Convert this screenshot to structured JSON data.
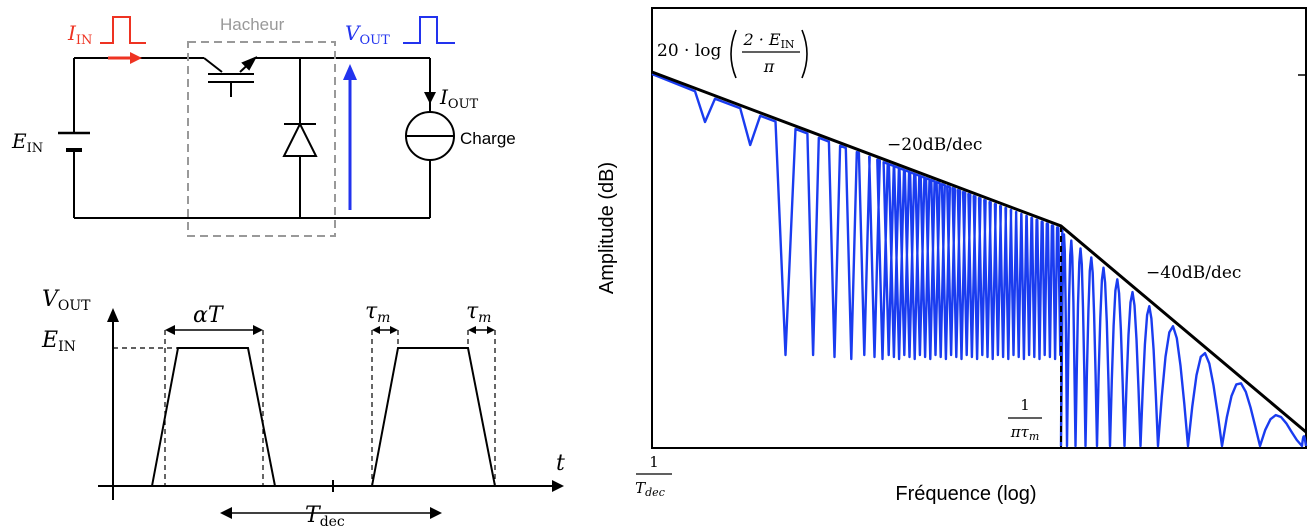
{
  "circuit": {
    "i_in": {
      "main": "I",
      "sub": "IN"
    },
    "hacheur_label": "Hacheur",
    "v_out": {
      "main": "V",
      "sub": "OUT"
    },
    "i_out": {
      "main": "I",
      "sub": "OUT"
    },
    "e_in": {
      "main": "E",
      "sub": "IN"
    },
    "charge_label": "Charge",
    "colors": {
      "input": "#ee3322",
      "output": "#2233ee",
      "hacheur": "#999999",
      "wire": "#000000"
    }
  },
  "waveform": {
    "y_label": {
      "main": "V",
      "sub": "OUT"
    },
    "level_label": {
      "main": "E",
      "sub": "IN"
    },
    "alpha_t": "αT",
    "tau_left": {
      "main": "τ",
      "sub": "m"
    },
    "tau_right": {
      "main": "τ",
      "sub": "m"
    },
    "t_axis": "t",
    "period": {
      "main": "T",
      "sub": "dec"
    }
  },
  "spectrum": {
    "y_label": "Amplitude (dB)",
    "x_label": "Fréquence (log)",
    "amplitude_formula": {
      "prefix": "20 · log",
      "num_a": "2 · E",
      "num_sub": "IN",
      "den": "π"
    },
    "slope_1": "−20dB/dec",
    "slope_2": "−40dB/dec",
    "corner": {
      "num": "1",
      "den_a": "πτ",
      "den_sub": "m"
    },
    "x_start": {
      "num": "1",
      "den_a": "T",
      "den_sub": "dec"
    },
    "line_color": "#1a3cf0"
  }
}
